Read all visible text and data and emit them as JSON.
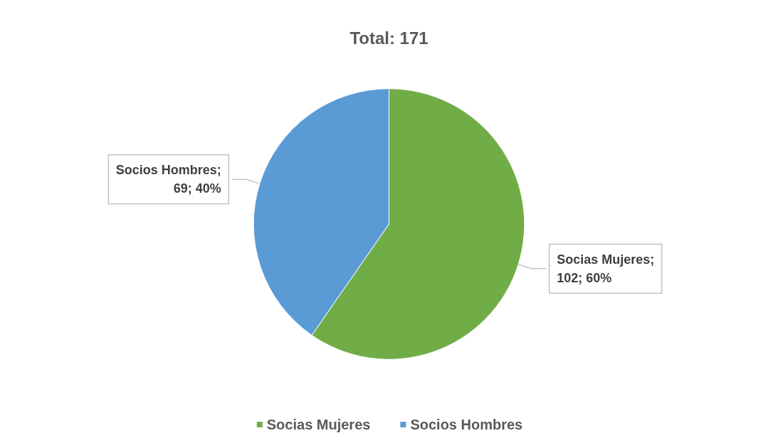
{
  "chart_data": {
    "type": "pie",
    "title": "Total: 171",
    "categories": [
      "Socias Mujeres",
      "Socios Hombres"
    ],
    "values": [
      102,
      69
    ],
    "colors": [
      "#70ad47",
      "#5b9bd5"
    ],
    "value_labels": [
      "Socias Mujeres; 102; 60%",
      "Socios Hombres; 69; 40%"
    ],
    "legend": "bottom"
  }
}
